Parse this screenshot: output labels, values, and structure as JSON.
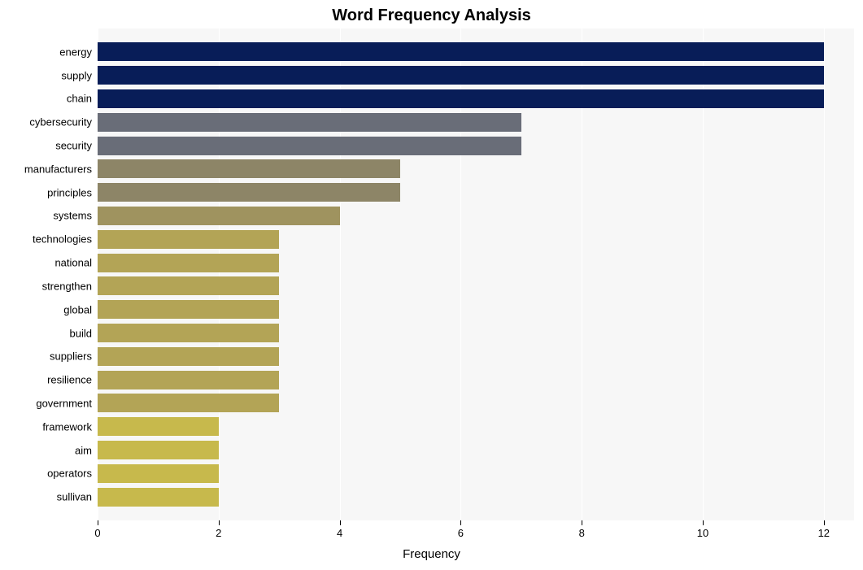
{
  "chart": {
    "type": "bar",
    "orientation": "horizontal",
    "title": "Word Frequency Analysis",
    "title_fontsize": 20,
    "title_fontweight": "bold",
    "xlabel": "Frequency",
    "xlabel_fontsize": 15,
    "background_color": "#ffffff",
    "plot_background_color": "#f7f7f7",
    "grid_color": "#ffffff",
    "tick_fontsize": 13,
    "tick_color": "#000000",
    "xlim_min": 0,
    "xlim_max": 12.5,
    "xtick_step": 2,
    "xticks": [
      0,
      2,
      4,
      6,
      8,
      10,
      12
    ],
    "bar_height_ratio": 0.8,
    "labels": [
      "energy",
      "supply",
      "chain",
      "cybersecurity",
      "security",
      "manufacturers",
      "principles",
      "systems",
      "technologies",
      "national",
      "strengthen",
      "global",
      "build",
      "suppliers",
      "resilience",
      "government",
      "framework",
      "aim",
      "operators",
      "sullivan"
    ],
    "values": [
      12,
      12,
      12,
      7,
      7,
      5,
      5,
      4,
      3,
      3,
      3,
      3,
      3,
      3,
      3,
      3,
      2,
      2,
      2,
      2
    ],
    "bar_colors": [
      "#081d58",
      "#081d58",
      "#081d58",
      "#696d78",
      "#696d78",
      "#8d8567",
      "#8d8567",
      "#9f935f",
      "#b3a456",
      "#b3a456",
      "#b3a456",
      "#b3a456",
      "#b3a456",
      "#b3a456",
      "#b3a456",
      "#b3a456",
      "#c7b94c",
      "#c7b94c",
      "#c7b94c",
      "#c7b94c"
    ]
  }
}
